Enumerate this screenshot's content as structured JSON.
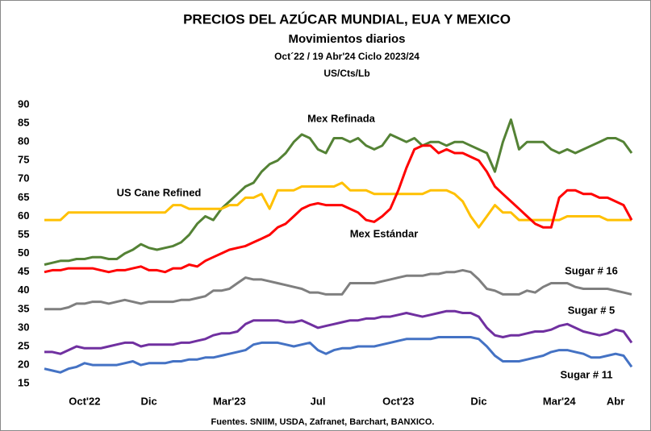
{
  "chart_data": {
    "type": "line",
    "title": "PRECIOS DEL AZÚCAR MUNDIAL, EUA Y MEXICO",
    "subtitle": "Movimientos diarios",
    "period": "Oct´22 / 19 Abr'24  Ciclo 2023/24",
    "units": "US/Cts/Lb",
    "source": "Fuentes. SNIIM, USDA, Zafranet, Barchart, BANXICO.",
    "categories": [
      null,
      null,
      null,
      null,
      null,
      "Oct'22",
      null,
      null,
      null,
      null,
      null,
      null,
      null,
      "Dic",
      null,
      null,
      null,
      null,
      null,
      null,
      null,
      null,
      null,
      "Mar'23",
      null,
      null,
      null,
      null,
      null,
      null,
      null,
      null,
      null,
      null,
      "Jul",
      null,
      null,
      null,
      null,
      null,
      null,
      null,
      null,
      null,
      "Oct'23",
      null,
      null,
      null,
      null,
      null,
      null,
      null,
      null,
      null,
      "Dic",
      null,
      null,
      null,
      null,
      null,
      null,
      null,
      null,
      null,
      "Mar'24",
      null,
      null,
      null,
      null,
      null,
      null,
      "Abr",
      null,
      null
    ],
    "ylim": [
      12,
      90
    ],
    "yticks": [
      15,
      20,
      25,
      30,
      35,
      40,
      45,
      50,
      55,
      60,
      65,
      70,
      75,
      80,
      85,
      90
    ],
    "grid": false,
    "series": [
      {
        "name": "Mex Refinada",
        "color": "#548235",
        "values": [
          47,
          47.5,
          48,
          48,
          48.5,
          48.5,
          49,
          49,
          48.5,
          48.5,
          50,
          51,
          52.5,
          51.5,
          51,
          51.5,
          52,
          53,
          55,
          58,
          60,
          59,
          62,
          64,
          66,
          68,
          69,
          72,
          74,
          75,
          77,
          80,
          82,
          81,
          78,
          77,
          81,
          81,
          80,
          81,
          79,
          78,
          79,
          82,
          81,
          80,
          81,
          79,
          80,
          80,
          79,
          80,
          80,
          79,
          78,
          77,
          72,
          80,
          86,
          78,
          80,
          80,
          80,
          78,
          77,
          78,
          77,
          78,
          79,
          80,
          81,
          81,
          80,
          77
        ]
      },
      {
        "name": "US Cane Refined",
        "color": "#ffc000",
        "values": [
          59,
          59,
          59,
          61,
          61,
          61,
          61,
          61,
          61,
          61,
          61,
          61,
          61,
          61,
          61,
          61,
          63,
          63,
          62,
          62,
          62,
          62,
          62,
          63,
          63,
          65,
          65,
          66,
          62,
          67,
          67,
          67,
          68,
          68,
          68,
          68,
          68,
          69,
          67,
          67,
          67,
          66,
          66,
          66,
          66,
          66,
          66,
          66,
          67,
          67,
          67,
          66,
          64,
          60,
          57,
          60,
          63,
          61,
          61,
          59,
          59,
          59,
          59,
          59,
          59,
          60,
          60,
          60,
          60,
          60,
          59,
          59,
          59,
          59
        ]
      },
      {
        "name": "Mex Estándar",
        "color": "#ff0000",
        "values": [
          45,
          45.5,
          45.5,
          46,
          46,
          46,
          46,
          45.5,
          45,
          45.5,
          45.5,
          46,
          46.5,
          45.5,
          45.5,
          45,
          46,
          46,
          47,
          46.5,
          48,
          49,
          50,
          51,
          51.5,
          52,
          53,
          54,
          55,
          57,
          58,
          60,
          62,
          63,
          63.5,
          63,
          63,
          63,
          62,
          61,
          59,
          58.5,
          60,
          62,
          67,
          73,
          78,
          79,
          79,
          77,
          78,
          77,
          77,
          76,
          75,
          72,
          68,
          66,
          64,
          62,
          60,
          58,
          57,
          57,
          65,
          67,
          67,
          66,
          66,
          65,
          65,
          64,
          63,
          59
        ]
      },
      {
        "name": "Sugar # 16",
        "color": "#7f7f7f",
        "values": [
          35,
          35,
          35,
          35.5,
          36.5,
          36.5,
          37,
          37,
          36.5,
          37,
          37.5,
          37,
          36.5,
          37,
          37,
          37,
          37,
          37.5,
          37.5,
          38,
          38.5,
          40,
          40,
          40.5,
          42,
          43.5,
          43,
          43,
          42.5,
          42,
          41.5,
          41,
          40.5,
          39.5,
          39.5,
          39,
          39,
          39,
          42,
          42,
          42,
          42,
          42.5,
          43,
          43.5,
          44,
          44,
          44,
          44.5,
          44.5,
          45,
          45,
          45.5,
          45,
          43,
          40.5,
          40,
          39,
          39,
          39,
          40,
          39.5,
          41,
          42,
          42,
          42,
          41,
          40.5,
          40.5,
          40.5,
          40.5,
          40,
          39.5,
          39
        ]
      },
      {
        "name": "Sugar # 5",
        "color": "#7030a0",
        "values": [
          23.5,
          23.5,
          23,
          24,
          25,
          24.5,
          24.5,
          24.5,
          25,
          25.5,
          26,
          26,
          25,
          25.5,
          25.5,
          25.5,
          25.5,
          26,
          26,
          26.5,
          27,
          28,
          28.5,
          28.5,
          29,
          31,
          32,
          32,
          32,
          32,
          31.5,
          31.5,
          32,
          31,
          30,
          30.5,
          31,
          31.5,
          32,
          32,
          32.5,
          32.5,
          33,
          33,
          33.5,
          34,
          33.5,
          33,
          33.5,
          34,
          34.5,
          34.5,
          34,
          34,
          33,
          30,
          28,
          27.5,
          28,
          28,
          28.5,
          29,
          29,
          29.5,
          30.5,
          31,
          30,
          29,
          28.5,
          28,
          28.5,
          29.5,
          29,
          26
        ]
      },
      {
        "name": "Sugar # 11",
        "color": "#4472c4",
        "values": [
          19,
          18.5,
          18,
          19,
          19.5,
          20.5,
          20,
          20,
          20,
          20,
          20.5,
          21,
          20,
          20.5,
          20.5,
          20.5,
          21,
          21,
          21.5,
          21.5,
          22,
          22,
          22.5,
          23,
          23.5,
          24,
          25.5,
          26,
          26,
          26,
          25.5,
          25,
          25.5,
          26,
          24,
          23,
          24,
          24.5,
          24.5,
          25,
          25,
          25,
          25.5,
          26,
          26.5,
          27,
          27,
          27,
          27,
          27.5,
          27.5,
          27.5,
          27.5,
          27.5,
          27,
          25,
          22.5,
          21,
          21,
          21,
          21.5,
          22,
          22.5,
          23.5,
          24,
          24,
          23.5,
          23,
          22,
          22,
          22.5,
          23,
          22.5,
          19.5
        ]
      }
    ]
  }
}
